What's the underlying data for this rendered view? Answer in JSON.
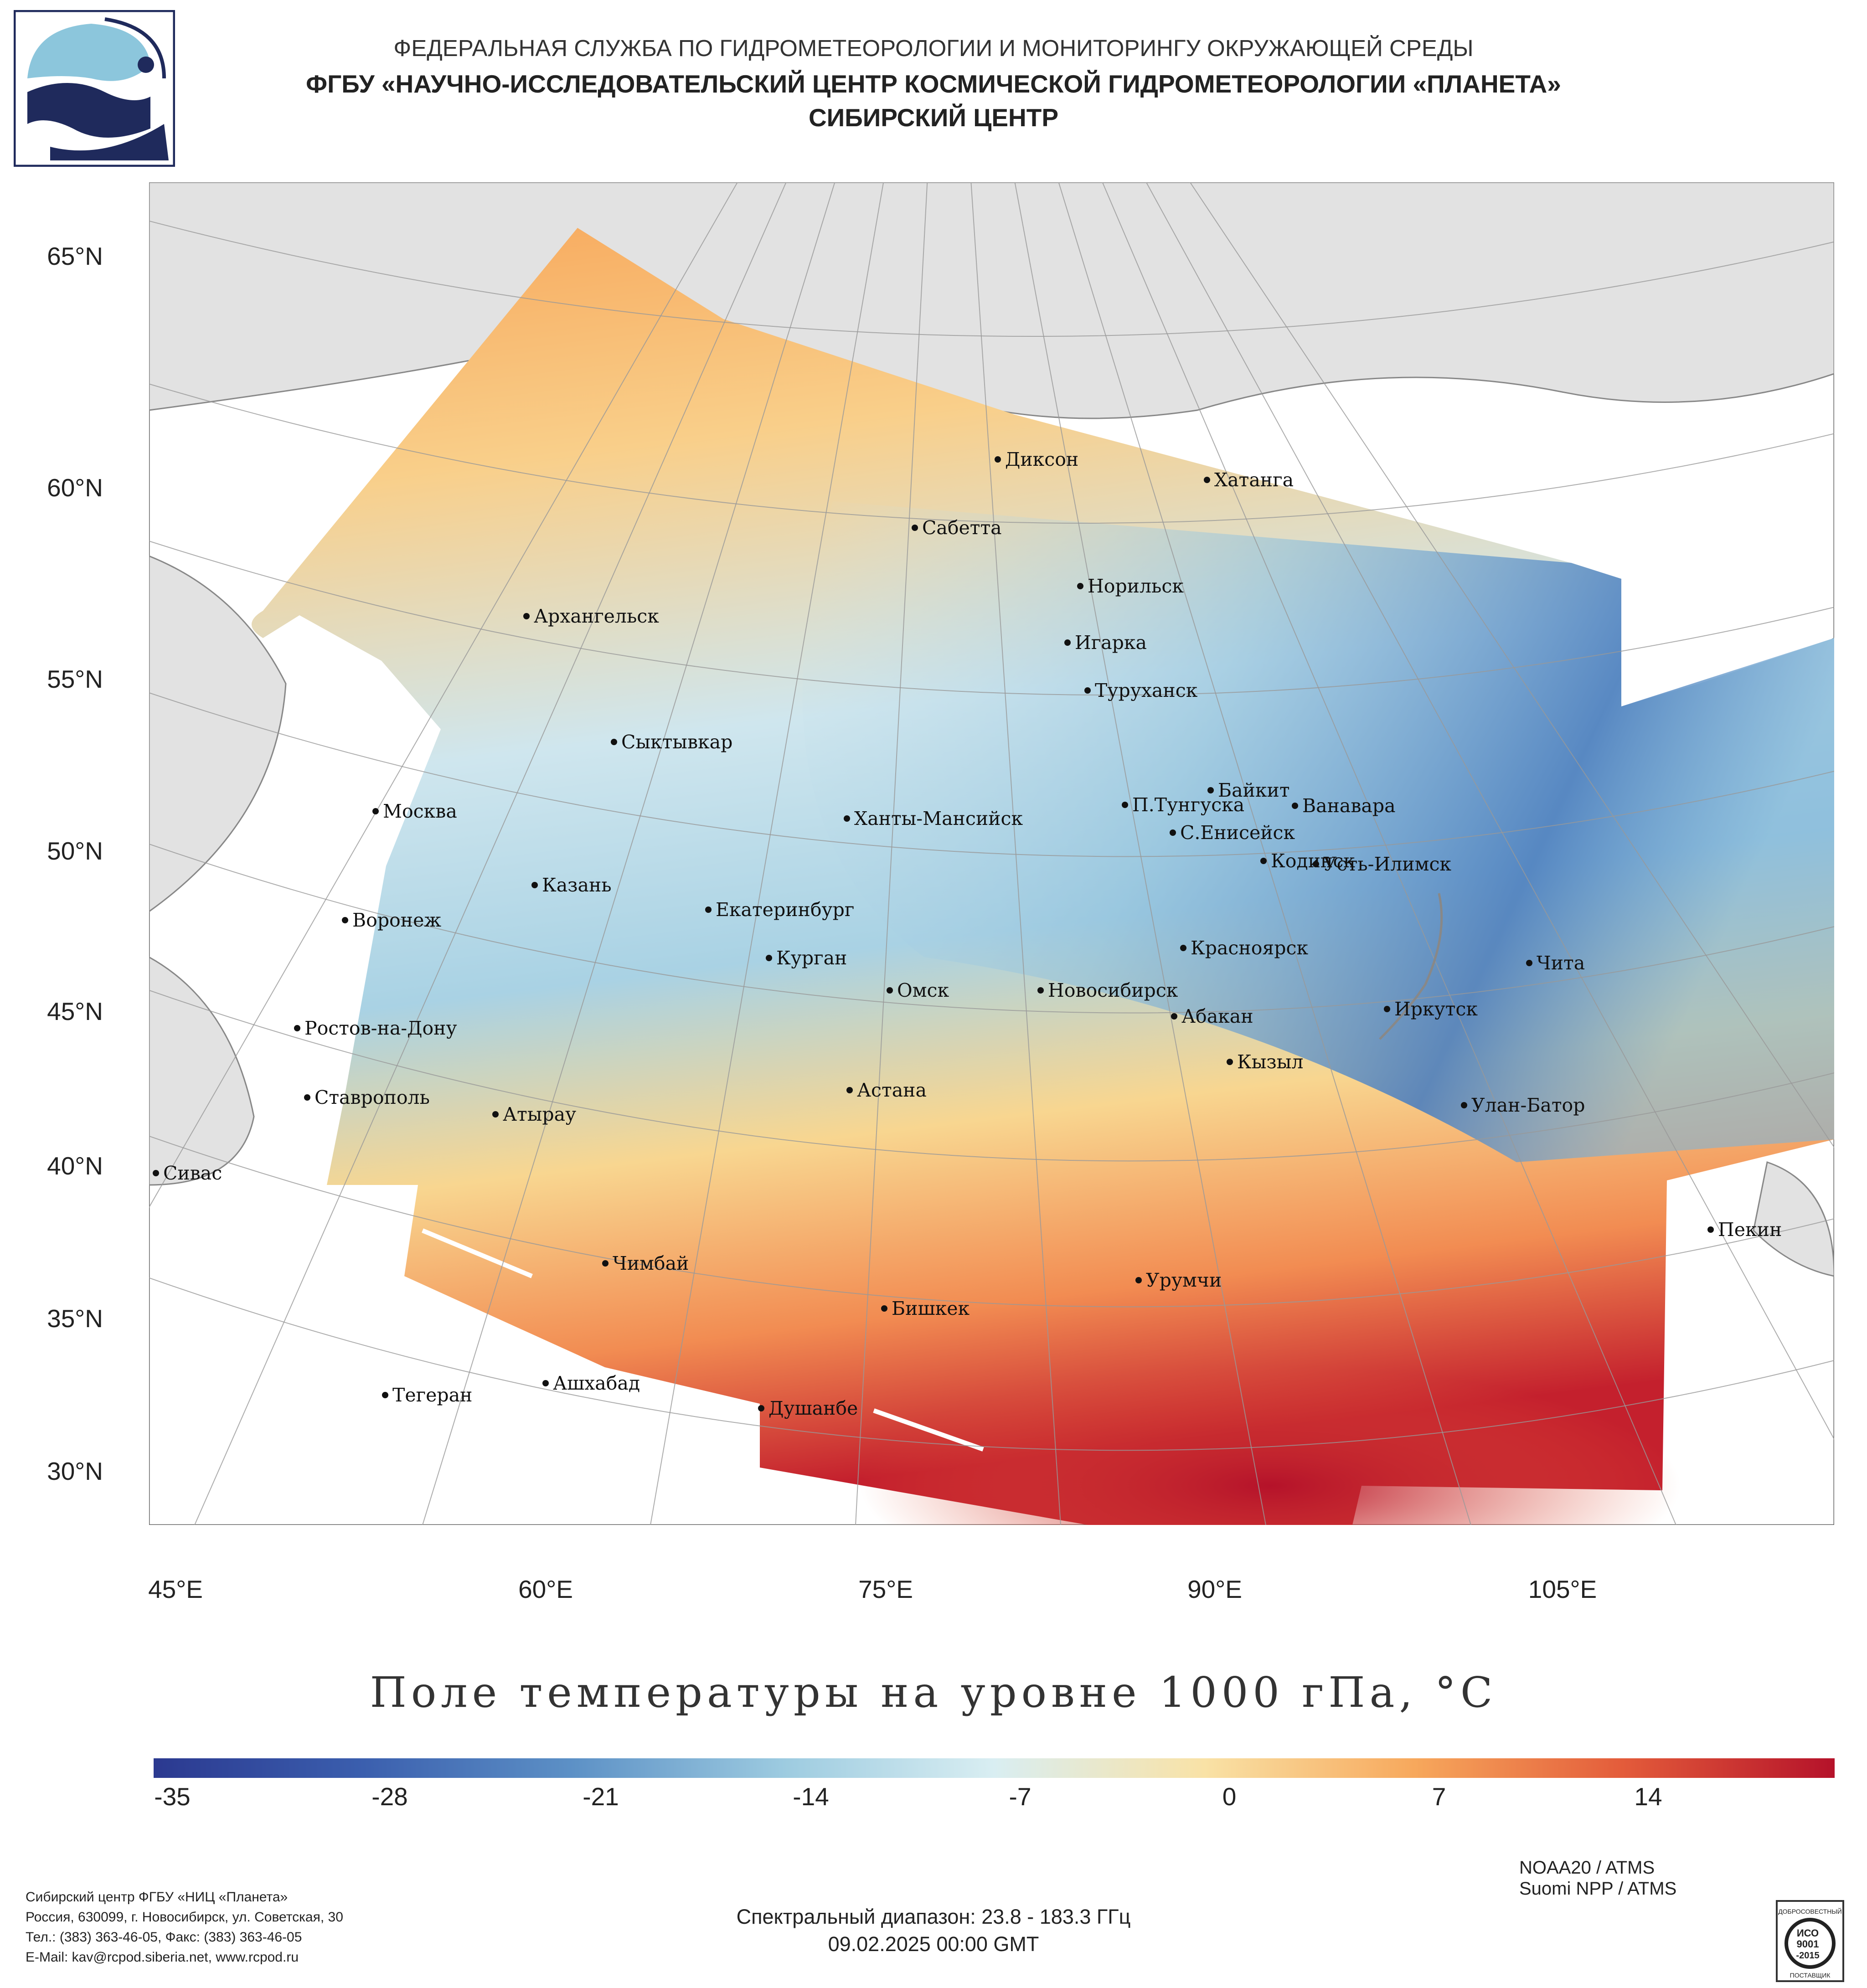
{
  "header": {
    "line1": "ФЕДЕРАЛЬНАЯ СЛУЖБА ПО ГИДРОМЕТЕОРОЛОГИИ И МОНИТОРИНГУ ОКРУЖАЮЩЕЙ СРЕДЫ",
    "line2": "ФГБУ «НАУЧНО-ИССЛЕДОВАТЕЛЬСКИЙ ЦЕНТР КОСМИЧЕСКОЙ ГИДРОМЕТЕОРОЛОГИИ «ПЛАНЕТА»",
    "line3": "СИБИРСКИЙ ЦЕНТР"
  },
  "map": {
    "lat_labels": [
      "65°N",
      "60°N",
      "55°N",
      "50°N",
      "45°N",
      "40°N",
      "35°N",
      "30°N"
    ],
    "lon_labels": [
      "45°E",
      "60°E",
      "75°E",
      "90°E",
      "105°E"
    ],
    "cities": [
      "Диксон",
      "Хатанга",
      "Сабетта",
      "Норильск",
      "Архангельск",
      "Игарка",
      "Туруханск",
      "Сыктывкар",
      "Байкит",
      "Москва",
      "П.Тунгуска",
      "Ванавара",
      "Ханты-Мансийск",
      "С.Енисейск",
      "Кодинск",
      "Усть-Илимск",
      "Казань",
      "Екатеринбург",
      "Воронеж",
      "Красноярск",
      "Курган",
      "Чита",
      "Омск",
      "Новосибирск",
      "Ростов-на-Дону",
      "Иркутск",
      "Абакан",
      "Кызыл",
      "Астана",
      "Ставрополь",
      "Улан-Батор",
      "Атырау",
      "Сивас",
      "Пекин",
      "Чимбай",
      "Урумчи",
      "Бишкек",
      "Ашхабад",
      "Тегеран",
      "Душанбе"
    ],
    "title": "Поле температуры на уровне 1000 гПа, °C"
  },
  "colorbar": {
    "ticks": [
      "-35",
      "-28",
      "-21",
      "-14",
      "-7",
      "0",
      "7",
      "14"
    ],
    "colors": [
      "#2b3990",
      "#3b5fae",
      "#5d91c6",
      "#9dcbe0",
      "#d9eef2",
      "#f9e2a6",
      "#f7a85c",
      "#e35b3a",
      "#b5122a"
    ]
  },
  "footer": {
    "org_lines": [
      "Сибирский центр ФГБУ «НИЦ «Планета»",
      "Россия, 630099, г. Новосибирск, ул. Советская, 30",
      "Тел.: (383) 363-46-05, Факс: (383) 363-46-05",
      "E-Mail: kav@rcpod.siberia.net, www.rcpod.ru"
    ],
    "satellite1": "NOAA20 / ATMS",
    "satellite2": "Suomi NPP / ATMS",
    "spectral": "Спектральный диапазон: 23.8 - 183.3 ГГц",
    "datetime": "09.02.2025 00:00 GMT"
  },
  "certificate": {
    "top": "ДОБРОСОВЕСТНЫЙ",
    "mid1": "ИСО",
    "mid2": "9001",
    "mid3": "-2015",
    "bottom": "ПОСТАВЩИК"
  }
}
